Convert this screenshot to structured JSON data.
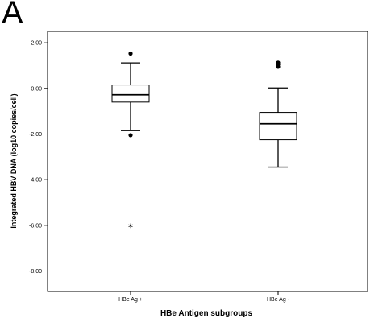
{
  "panel_label": "A",
  "chart_data": {
    "type": "box",
    "title": "",
    "xlabel": "HBe Antigen subgroups",
    "ylabel": "Integrated HBV DNA (log10 copies/cell)",
    "ylim": [
      -8.9,
      2.5
    ],
    "yticks": [
      2,
      0,
      -2,
      -4,
      -6,
      -8
    ],
    "ytick_labels": [
      "2,00",
      "0,00",
      "-2,00",
      "-4,00",
      "-6,00",
      "-8,00"
    ],
    "grid": false,
    "categories": [
      "HBe Ag +",
      "HBe Ag -"
    ],
    "boxes": [
      {
        "category": "HBe Ag +",
        "whisker_low": -1.85,
        "q1": -0.6,
        "median": -0.28,
        "q3": 0.15,
        "whisker_high": 1.12,
        "outliers": [
          1.53,
          -2.05
        ],
        "extremes": [
          -6.05
        ]
      },
      {
        "category": "HBe Ag -",
        "whisker_low": -3.45,
        "q1": -2.25,
        "median": -1.55,
        "q3": -1.05,
        "whisker_high": 0.02,
        "outliers": [
          0.95,
          1.05,
          1.13
        ],
        "extremes": []
      }
    ]
  }
}
